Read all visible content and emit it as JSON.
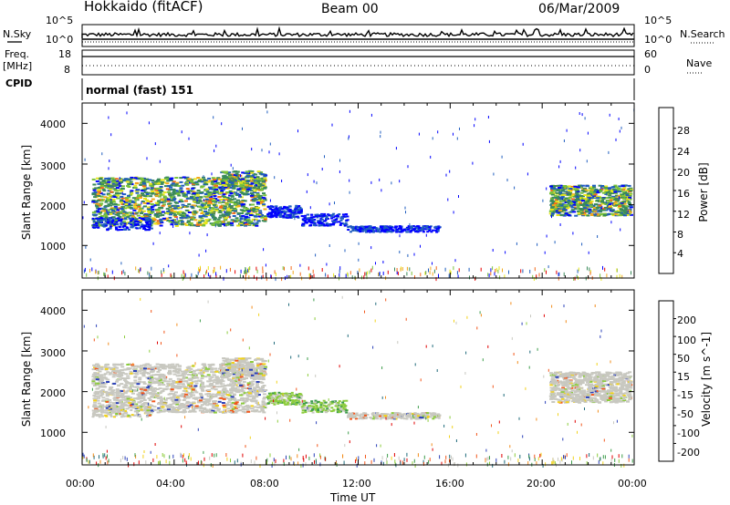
{
  "header": {
    "station": "Hokkaido (fitACF)",
    "beam": "Beam 00",
    "date": "06/Mar/2009"
  },
  "side_labels": {
    "nsky": "N.Sky",
    "freq_line1": "Freq.",
    "freq_line2": "[MHz]",
    "cpid": "CPID",
    "nsearch": "N.Search",
    "nave": "Nave"
  },
  "noise_panel": {
    "left_ticks": [
      "10^5",
      "10^0"
    ],
    "right_ticks": [
      "10^5",
      "10^0"
    ]
  },
  "freq_panel": {
    "left_ticks": [
      "18",
      "8"
    ],
    "right_ticks": [
      "60",
      "0"
    ]
  },
  "cpid_text": "normal (fast) 151",
  "x_axis": {
    "label": "Time UT",
    "ticks": [
      "00:00",
      "04:00",
      "08:00",
      "12:00",
      "16:00",
      "20:00",
      "00:00"
    ]
  },
  "colors": {
    "power_scale": [
      "#0000ff",
      "#1f5dbf",
      "#3a8a5a",
      "#7ac23a",
      "#e6e61a",
      "#f2a81a",
      "#f26a1a",
      "#e60000"
    ],
    "velocity_scale": [
      "#2a40b8",
      "#1f6a7a",
      "#3c9c4a",
      "#8ccc3c",
      "#c8c8c0",
      "#f2d21a",
      "#f28c1a",
      "#f2561a",
      "#e00000"
    ]
  },
  "chart_data": [
    {
      "type": "heatmap",
      "ylabel": "Slant Range [km]",
      "yticks": [
        1000,
        2000,
        3000,
        4000
      ],
      "ylim": [
        200,
        4500
      ],
      "x_range_hours": [
        0,
        24
      ],
      "colorbar": {
        "label": "Power [dB]",
        "ticks": [
          "28",
          "24",
          "20",
          "16",
          "12",
          "8",
          "4"
        ],
        "range": [
          0,
          30
        ]
      },
      "regions": [
        {
          "t0": 0.4,
          "t1": 7.9,
          "r0": 1450,
          "r1": 2850,
          "dominant": "power 12-20 dB"
        },
        {
          "t0": 8.0,
          "t1": 11.5,
          "r0": 1500,
          "r1": 2000,
          "dominant": "power 4-8 dB"
        },
        {
          "t0": 11.5,
          "t1": 15.5,
          "r0": 1350,
          "r1": 1500,
          "dominant": "power 4-8 dB"
        },
        {
          "t0": 20.3,
          "t1": 23.8,
          "r0": 1750,
          "r1": 2500,
          "dominant": "power 12-24 dB"
        }
      ]
    },
    {
      "type": "heatmap",
      "ylabel": "Slant Range [km]",
      "yticks": [
        1000,
        2000,
        3000,
        4000
      ],
      "ylim": [
        200,
        4500
      ],
      "x_range_hours": [
        0,
        24
      ],
      "colorbar": {
        "label": "Velocity [m s^-1]",
        "ticks": [
          "200",
          "100",
          "50",
          "15",
          "-15",
          "-50",
          "-100",
          "-200"
        ],
        "range": [
          -250,
          250
        ]
      },
      "regions": [
        {
          "t0": 0.4,
          "t1": 7.9,
          "r0": 1450,
          "r1": 2850,
          "dominant": "velocity -15 to 15 (ground scatter)"
        },
        {
          "t0": 8.0,
          "t1": 11.5,
          "r0": 1500,
          "r1": 2000,
          "dominant": "velocity 15-50"
        },
        {
          "t0": 11.5,
          "t1": 15.5,
          "r0": 1350,
          "r1": 1500,
          "dominant": "velocity -15 to 15"
        },
        {
          "t0": 20.3,
          "t1": 23.8,
          "r0": 1750,
          "r1": 2500,
          "dominant": "velocity -15 to 15"
        }
      ]
    }
  ]
}
